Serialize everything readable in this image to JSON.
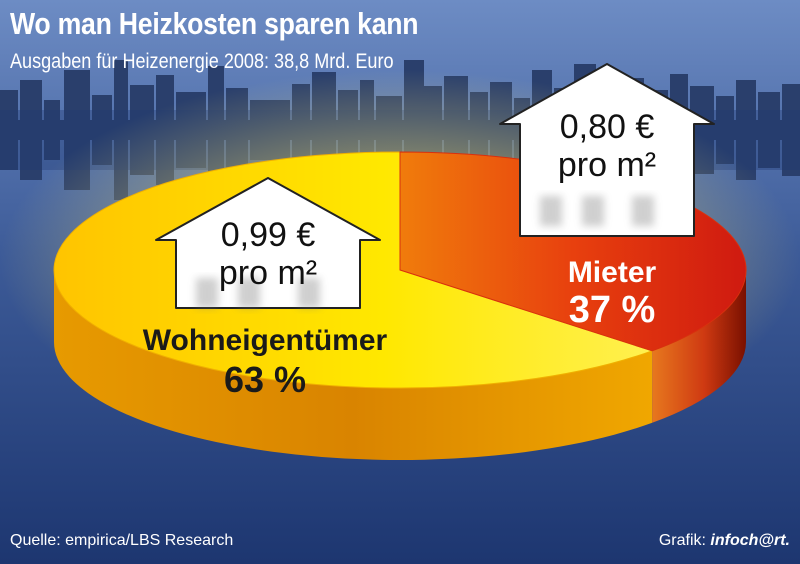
{
  "header": {
    "title": "Wo man Heizkosten sparen kann",
    "subtitle": "Ausgaben für Heizenergie 2008: 38,8 Mrd. Euro"
  },
  "footer": {
    "source": "Quelle: empirica/LBS Research",
    "credit_label": "Grafik:",
    "credit_brand": "infoch@rt."
  },
  "colors": {
    "owner_slice": "#f7c800",
    "renter_slice": "#e0351a",
    "background": "#1f3a74"
  },
  "chart_data": {
    "type": "pie",
    "title": "Wo man Heizkosten sparen kann",
    "subtitle": "Ausgaben für Heizenergie 2008: 38,8 Mrd. Euro",
    "slices": [
      {
        "label": "Wohneigentümer",
        "value": 63,
        "value_label": "63 %",
        "cost_label": "0,99 €",
        "unit_label": "pro m²"
      },
      {
        "label": "Mieter",
        "value": 37,
        "value_label": "37 %",
        "cost_label": "0,80 €",
        "unit_label": "pro m²"
      }
    ]
  }
}
